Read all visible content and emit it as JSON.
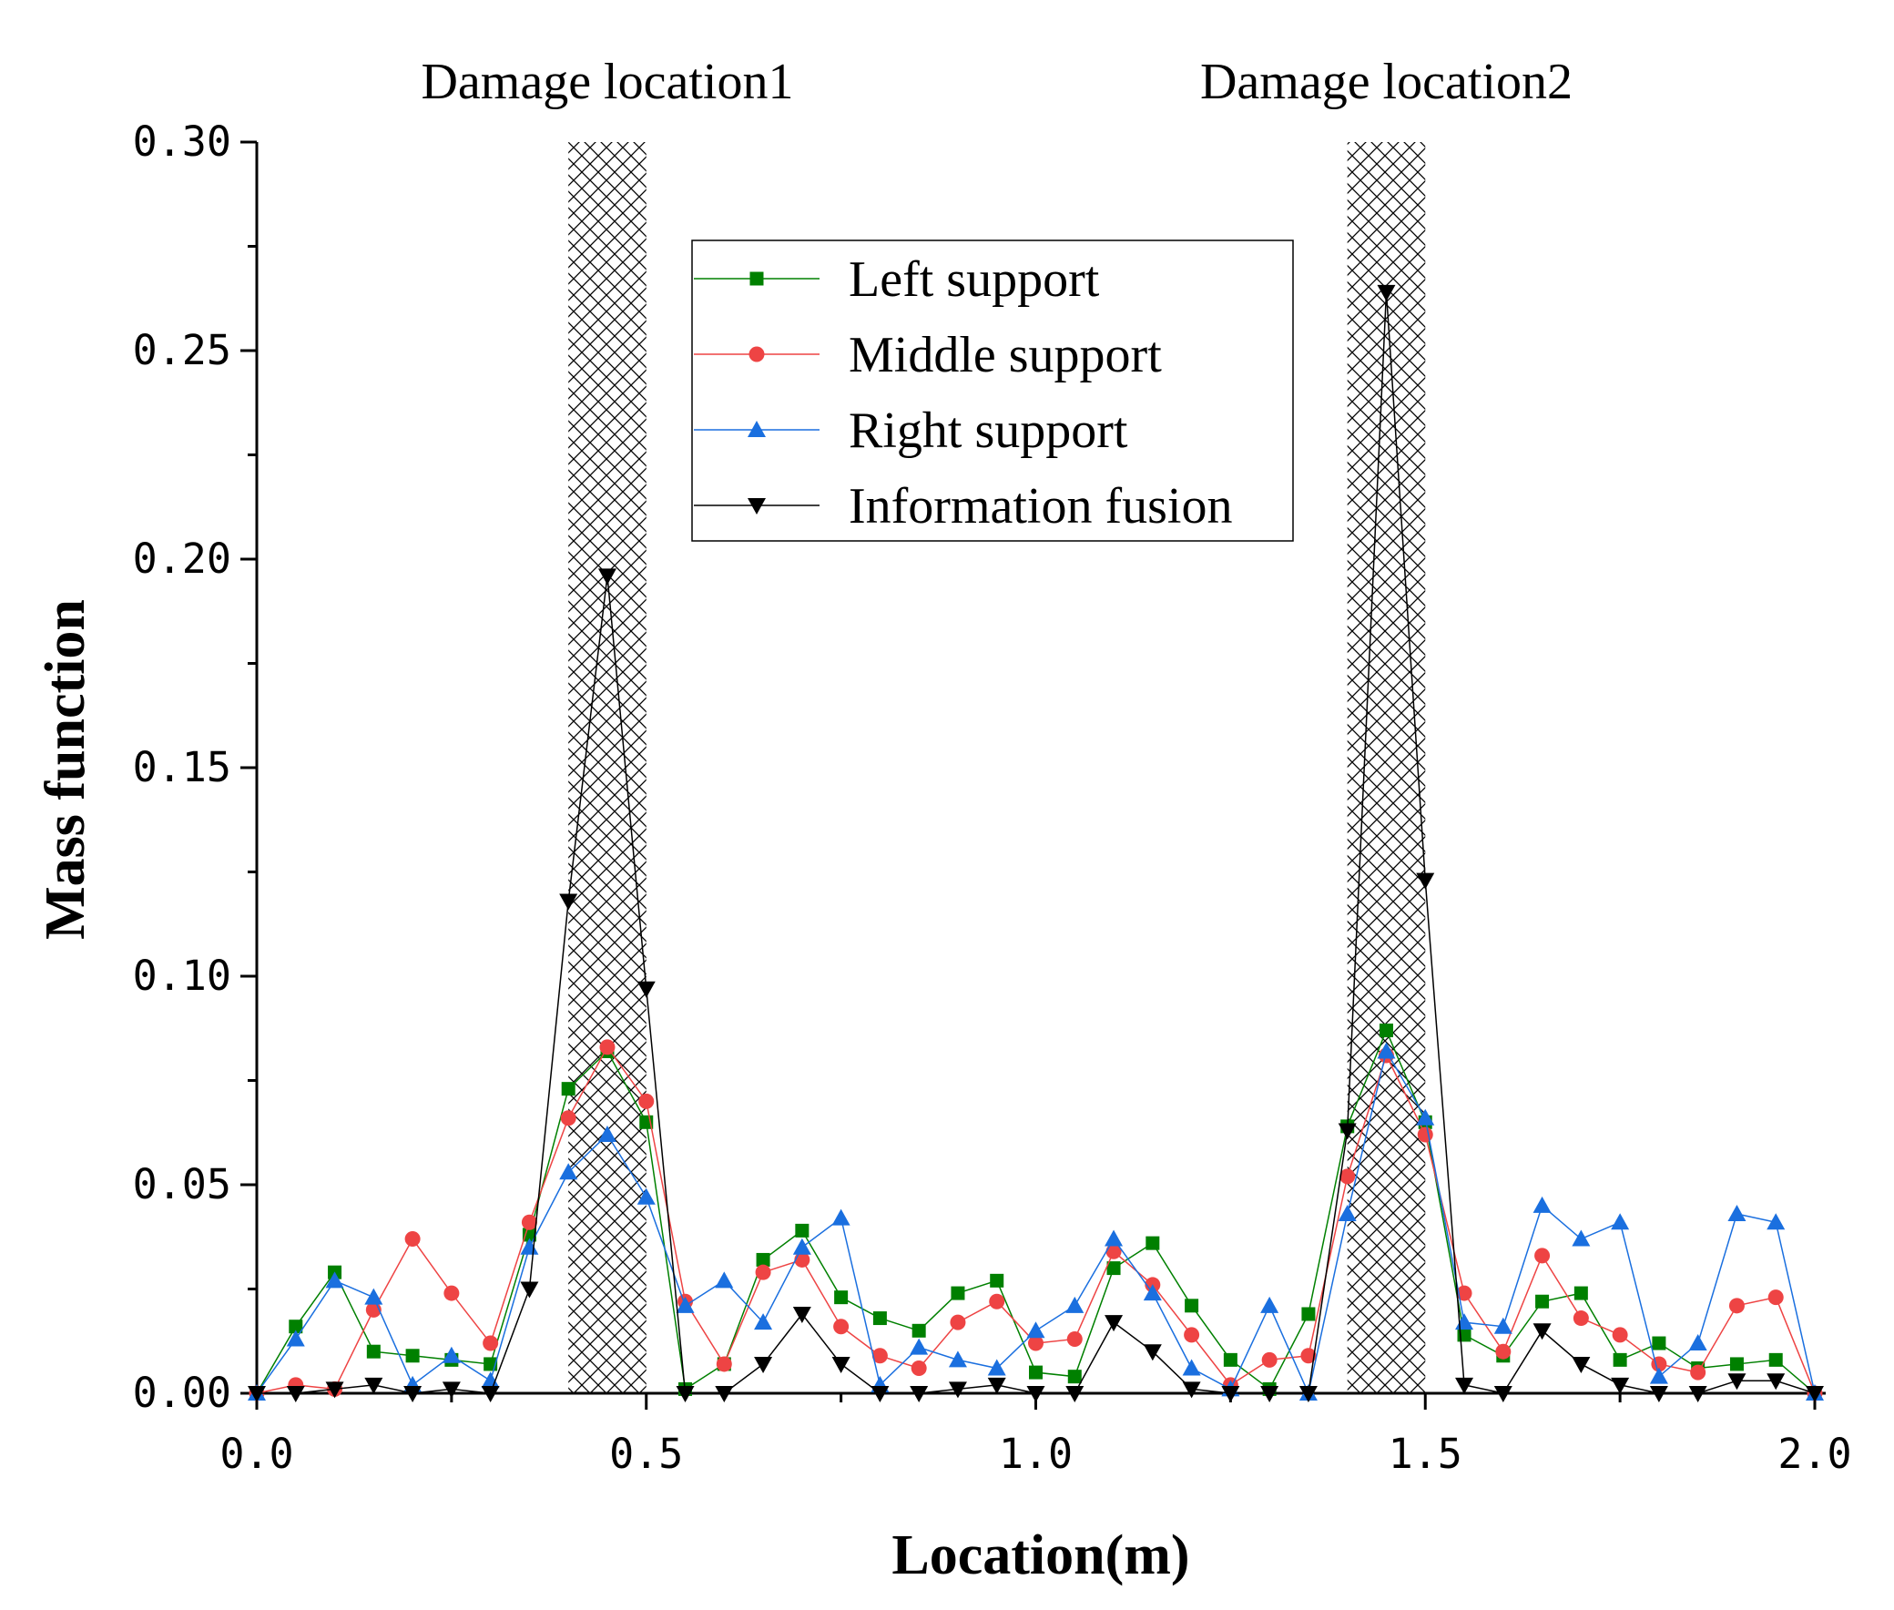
{
  "chart_data": {
    "type": "line",
    "title": "",
    "xlabel": "Location(m)",
    "ylabel": "Mass function",
    "xlim": [
      0.0,
      2.0
    ],
    "ylim": [
      0.0,
      0.3
    ],
    "x_ticks": [
      "0.0",
      "0.5",
      "1.0",
      "1.5",
      "2.0"
    ],
    "y_ticks": [
      "0.00",
      "0.05",
      "0.10",
      "0.15",
      "0.20",
      "0.25",
      "0.30"
    ],
    "x": [
      0.0,
      0.05,
      0.1,
      0.15,
      0.2,
      0.25,
      0.3,
      0.35,
      0.4,
      0.45,
      0.5,
      0.55,
      0.6,
      0.65,
      0.7,
      0.75,
      0.8,
      0.85,
      0.9,
      0.95,
      1.0,
      1.05,
      1.1,
      1.15,
      1.2,
      1.25,
      1.3,
      1.35,
      1.4,
      1.45,
      1.5,
      1.55,
      1.6,
      1.65,
      1.7,
      1.75,
      1.8,
      1.85,
      1.9,
      1.95,
      2.0
    ],
    "damage_zones": [
      {
        "label": "Damage location1",
        "x_start": 0.4,
        "x_end": 0.5
      },
      {
        "label": "Damage location2",
        "x_start": 1.4,
        "x_end": 1.5
      }
    ],
    "legend_position": "top-center",
    "series": [
      {
        "name": "Left support",
        "color": "#008000",
        "marker": "square",
        "values": [
          0.0,
          0.016,
          0.029,
          0.01,
          0.009,
          0.008,
          0.007,
          0.038,
          0.073,
          0.082,
          0.065,
          0.001,
          0.007,
          0.032,
          0.039,
          0.023,
          0.018,
          0.015,
          0.024,
          0.027,
          0.005,
          0.004,
          0.03,
          0.036,
          0.021,
          0.008,
          0.001,
          0.019,
          0.064,
          0.087,
          0.065,
          0.014,
          0.009,
          0.022,
          0.024,
          0.008,
          0.012,
          0.006,
          0.007,
          0.008,
          0.0
        ]
      },
      {
        "name": "Middle support",
        "color": "#ee4444",
        "marker": "circle",
        "values": [
          0.0,
          0.002,
          0.001,
          0.02,
          0.037,
          0.024,
          0.012,
          0.041,
          0.066,
          0.083,
          0.07,
          0.022,
          0.007,
          0.029,
          0.032,
          0.016,
          0.009,
          0.006,
          0.017,
          0.022,
          0.012,
          0.013,
          0.034,
          0.026,
          0.014,
          0.002,
          0.008,
          0.009,
          0.052,
          0.081,
          0.062,
          0.024,
          0.01,
          0.033,
          0.018,
          0.014,
          0.007,
          0.005,
          0.021,
          0.023,
          0.0
        ]
      },
      {
        "name": "Right support",
        "color": "#1a6fdf",
        "marker": "triangle-up",
        "values": [
          0.0,
          0.013,
          0.027,
          0.023,
          0.002,
          0.009,
          0.003,
          0.035,
          0.053,
          0.062,
          0.047,
          0.021,
          0.027,
          0.017,
          0.035,
          0.042,
          0.002,
          0.011,
          0.008,
          0.006,
          0.015,
          0.021,
          0.037,
          0.024,
          0.006,
          0.001,
          0.021,
          0.0,
          0.043,
          0.082,
          0.066,
          0.017,
          0.016,
          0.045,
          0.037,
          0.041,
          0.004,
          0.012,
          0.043,
          0.041,
          0.0
        ]
      },
      {
        "name": "Information fusion",
        "color": "#000000",
        "marker": "triangle-down",
        "values": [
          0.0,
          0.0,
          0.001,
          0.002,
          0.0,
          0.001,
          0.0,
          0.025,
          0.118,
          0.196,
          0.097,
          0.0,
          0.0,
          0.007,
          0.019,
          0.007,
          0.0,
          0.0,
          0.001,
          0.002,
          0.0,
          0.0,
          0.017,
          0.01,
          0.001,
          0.0,
          0.0,
          0.0,
          0.063,
          0.264,
          0.123,
          0.002,
          0.0,
          0.015,
          0.007,
          0.002,
          0.0,
          0.0,
          0.003,
          0.003,
          0.0
        ]
      }
    ]
  }
}
